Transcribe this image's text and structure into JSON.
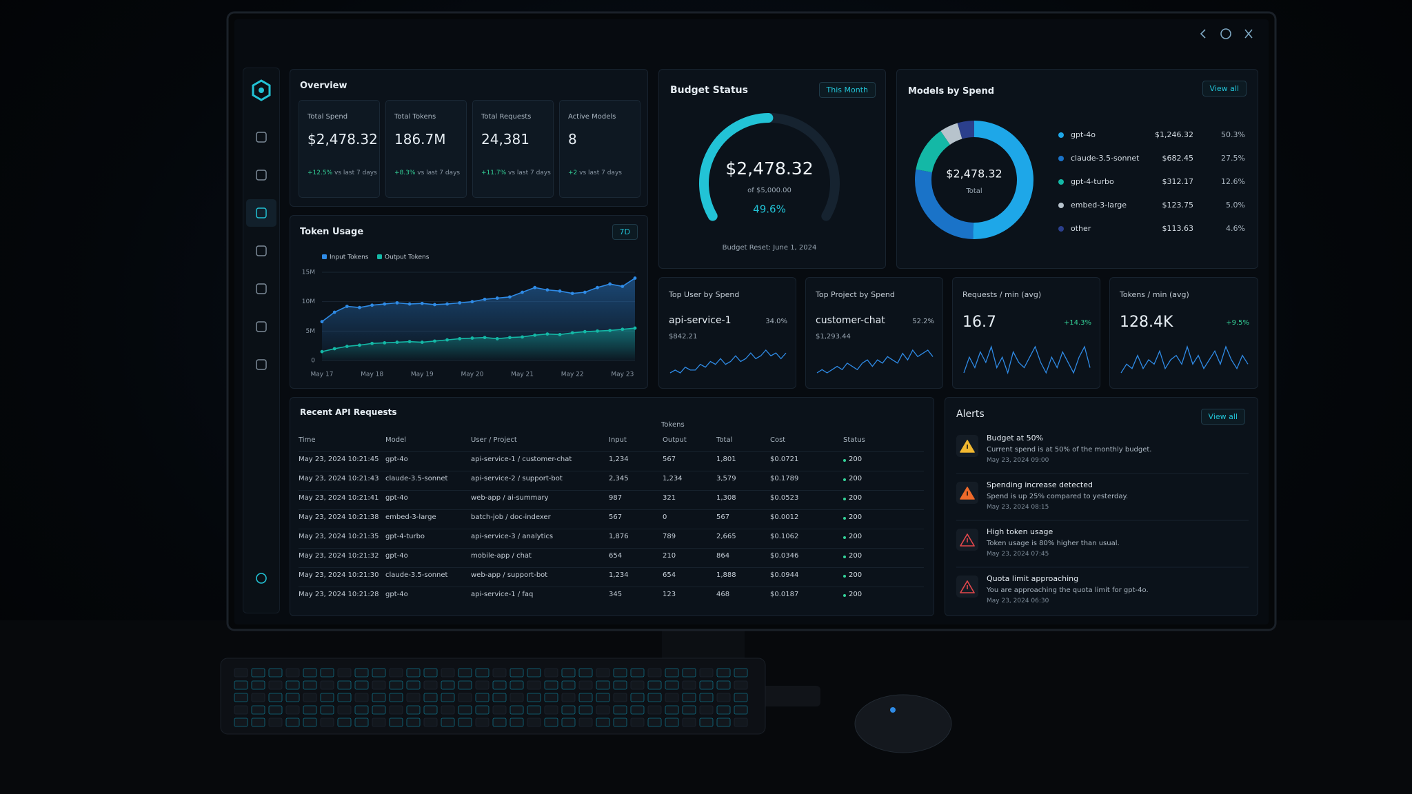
{
  "overview": {
    "title": "Overview",
    "cards": [
      {
        "label": "Total Spend",
        "value": "$2,478.32",
        "change": "+12.5%",
        "note": "vs last 7 days"
      },
      {
        "label": "Total Tokens",
        "value": "186.7M",
        "change": "+8.3%",
        "note": "vs last 7 days"
      },
      {
        "label": "Total Requests",
        "value": "24,381",
        "change": "+11.7%",
        "note": "vs last 7 days"
      },
      {
        "label": "Active Models",
        "value": "8",
        "change": "+2",
        "note": "vs last 7 days"
      }
    ]
  },
  "token_usage": {
    "type": "line",
    "title": "Token Usage",
    "filter": "7D",
    "categories": [
      "May 17",
      null,
      null,
      null,
      "May 18",
      null,
      null,
      null,
      "May 19",
      null,
      null,
      null,
      "May 20",
      null,
      null,
      null,
      "May 21",
      null,
      null,
      null,
      "May 22",
      null,
      null,
      null,
      "May 23",
      null
    ],
    "series": [
      {
        "name": "Input Tokens",
        "color": "#2f8be6",
        "values": [
          6600000,
          8200000,
          9200000,
          9000000,
          9400000,
          9600000,
          9800000,
          9600000,
          9700000,
          9500000,
          9600000,
          9800000,
          10000000,
          10400000,
          10600000,
          10800000,
          11600000,
          12400000,
          12000000,
          11800000,
          11400000,
          11600000,
          12400000,
          13000000,
          12600000,
          14000000
        ]
      },
      {
        "name": "Output Tokens",
        "color": "#14b8a6",
        "values": [
          1500000,
          2000000,
          2400000,
          2600000,
          2900000,
          3000000,
          3100000,
          3200000,
          3100000,
          3300000,
          3500000,
          3700000,
          3800000,
          3900000,
          3700000,
          3900000,
          4000000,
          4300000,
          4500000,
          4400000,
          4700000,
          4900000,
          5000000,
          5100000,
          5300000,
          5500000
        ]
      }
    ],
    "ylim": [
      0,
      15000000
    ],
    "yticks": [
      0,
      {
        "value": 5000000,
        "label": "5M"
      },
      {
        "value": 10000000,
        "label": "10M"
      },
      {
        "value": 15000000,
        "label": "15M"
      }
    ],
    "grid": true
  },
  "budget": {
    "title": "Budget Status",
    "filter": "This Month",
    "spent": "$2,478.32",
    "limit": "of $5,000.00",
    "percent": 49.6,
    "percent_label": "49.6%",
    "reset": "Budget Reset: June 1, 2024",
    "color": "#22c3d6"
  },
  "models": {
    "title": "Models by Spend",
    "action": "View all",
    "center_value": "$2,478.32",
    "center_label": "Total",
    "items": [
      {
        "name": "gpt-4o",
        "spend": "$1,246.32",
        "share": 50.3,
        "share_label": "50.3%",
        "color": "#1ea7e8"
      },
      {
        "name": "claude-3.5-sonnet",
        "spend": "$682.45",
        "share": 27.5,
        "share_label": "27.5%",
        "color": "#1a73c8"
      },
      {
        "name": "gpt-4-turbo",
        "spend": "$312.17",
        "share": 12.6,
        "share_label": "12.6%",
        "color": "#14b8a6"
      },
      {
        "name": "embed-3-large",
        "spend": "$123.75",
        "share": 5.0,
        "share_label": "5.0%",
        "color": "#b7c3cc"
      },
      {
        "name": "other",
        "spend": "$113.63",
        "share": 4.6,
        "share_label": "4.6%",
        "color": "#2b3f8c"
      }
    ]
  },
  "kpis": [
    {
      "title": "Top User by Spend",
      "value": "api-service-1",
      "badge": "34.0%",
      "sub": "$842.21",
      "color": "#2f8be6",
      "trend": [
        2,
        3,
        2,
        4,
        3,
        3,
        5,
        4,
        6,
        5,
        7,
        5,
        6,
        8,
        6,
        7,
        9,
        7,
        8,
        10,
        8,
        9,
        7,
        9
      ]
    },
    {
      "title": "Top Project by Spend",
      "value": "customer-chat",
      "badge": "52.2%",
      "sub": "$1,293.44",
      "color": "#2f8be6",
      "trend": [
        2,
        3,
        2,
        3,
        4,
        3,
        5,
        4,
        3,
        5,
        6,
        4,
        6,
        5,
        7,
        6,
        5,
        8,
        6,
        9,
        7,
        8,
        9,
        7
      ]
    },
    {
      "title": "Requests / min (avg)",
      "value": "16.7",
      "badge": "+14.3%",
      "color": "#2f8be6",
      "trend": [
        3,
        6,
        4,
        7,
        5,
        8,
        4,
        6,
        3,
        7,
        5,
        4,
        6,
        8,
        5,
        3,
        6,
        4,
        7,
        5,
        3,
        6,
        8,
        4
      ]
    },
    {
      "title": "Tokens / min (avg)",
      "value": "128.4K",
      "badge": "+9.5%",
      "color": "#2f8be6",
      "trend": [
        3,
        5,
        4,
        7,
        4,
        6,
        5,
        8,
        4,
        6,
        7,
        5,
        9,
        5,
        7,
        4,
        6,
        8,
        5,
        9,
        6,
        4,
        7,
        5
      ]
    }
  ],
  "table": {
    "title": "Recent API Requests",
    "group_header": "Tokens",
    "columns": [
      "Time",
      "Model",
      "User / Project",
      "Input",
      "Output",
      "Total",
      "Cost",
      "Status"
    ],
    "rows": [
      [
        "May 23, 2024 10:21:45",
        "gpt-4o",
        "api-service-1 / customer-chat",
        "1,234",
        "567",
        "1,801",
        "$0.0721",
        "200"
      ],
      [
        "May 23, 2024 10:21:43",
        "claude-3.5-sonnet",
        "api-service-2 / support-bot",
        "2,345",
        "1,234",
        "3,579",
        "$0.1789",
        "200"
      ],
      [
        "May 23, 2024 10:21:41",
        "gpt-4o",
        "web-app / ai-summary",
        "987",
        "321",
        "1,308",
        "$0.0523",
        "200"
      ],
      [
        "May 23, 2024 10:21:38",
        "embed-3-large",
        "batch-job / doc-indexer",
        "567",
        "0",
        "567",
        "$0.0012",
        "200"
      ],
      [
        "May 23, 2024 10:21:35",
        "gpt-4-turbo",
        "api-service-3 / analytics",
        "1,876",
        "789",
        "2,665",
        "$0.1062",
        "200"
      ],
      [
        "May 23, 2024 10:21:32",
        "gpt-4o",
        "mobile-app / chat",
        "654",
        "210",
        "864",
        "$0.0346",
        "200"
      ],
      [
        "May 23, 2024 10:21:30",
        "claude-3.5-sonnet",
        "web-app / support-bot",
        "1,234",
        "654",
        "1,888",
        "$0.0944",
        "200"
      ],
      [
        "May 23, 2024 10:21:28",
        "gpt-4o",
        "api-service-1 / faq",
        "345",
        "123",
        "468",
        "$0.0187",
        "200"
      ]
    ]
  },
  "alerts": {
    "title": "Alerts",
    "action": "View all",
    "items": [
      {
        "title": "Budget at 50%",
        "message": "Current spend is at 50% of the monthly budget.",
        "time": "May 23, 2024 09:00",
        "color": "#f2b830",
        "icon": "filled"
      },
      {
        "title": "Spending increase detected",
        "message": "Spend is up 25% compared to yesterday.",
        "time": "May 23, 2024 08:15",
        "color": "#f06a2a",
        "icon": "filled"
      },
      {
        "title": "High token usage",
        "message": "Token usage is 80% higher than usual.",
        "time": "May 23, 2024 07:45",
        "color": "#e5484d",
        "icon": "outline"
      },
      {
        "title": "Quota limit approaching",
        "message": "You are approaching the quota limit for gpt-4o.",
        "time": "May 23, 2024 06:30",
        "color": "#e5484d",
        "icon": "outline"
      }
    ]
  }
}
